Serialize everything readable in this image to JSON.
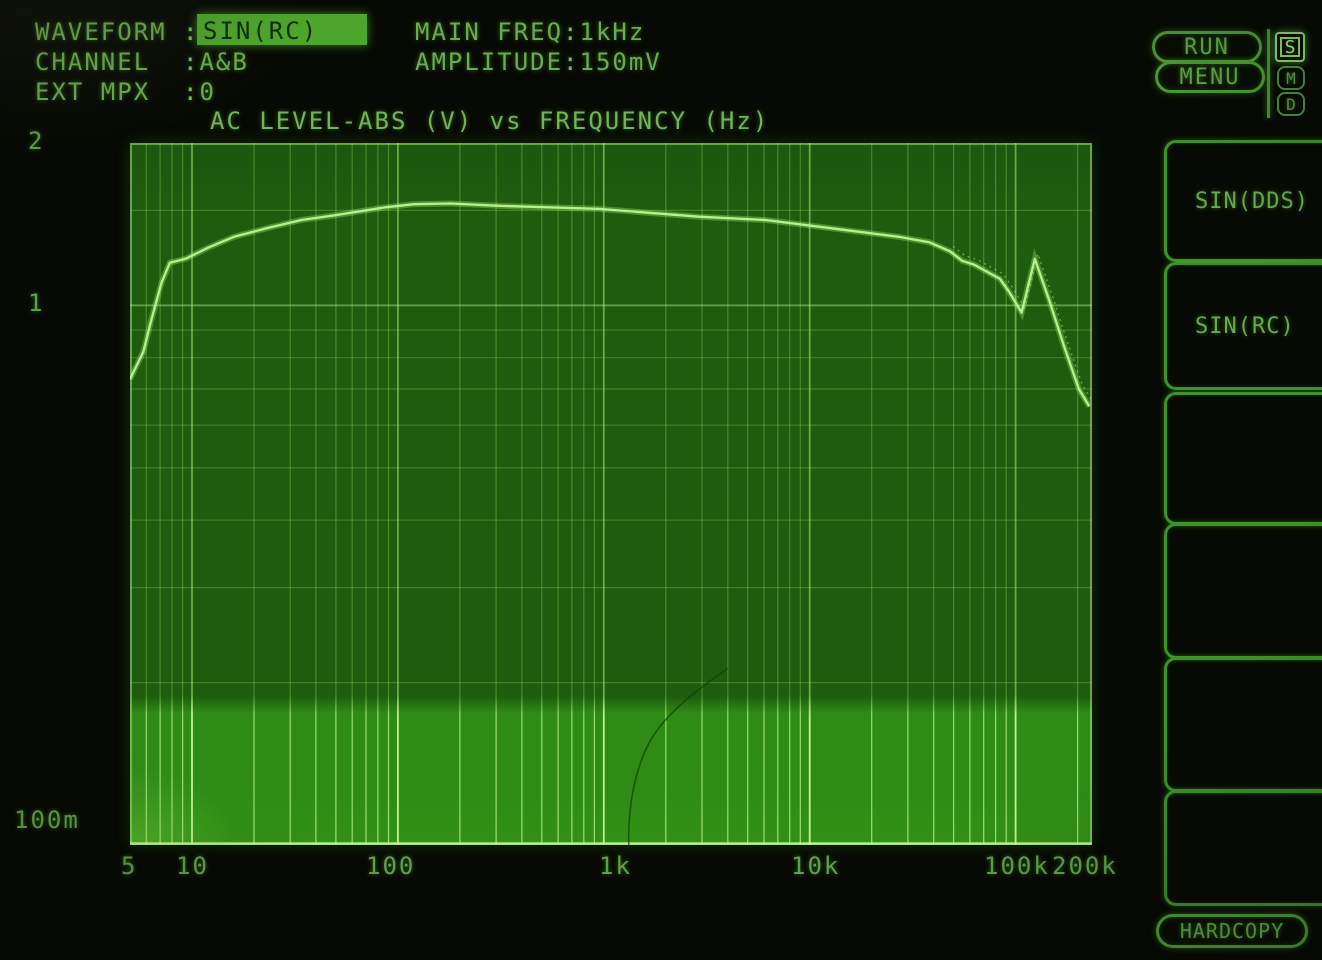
{
  "ui": {
    "colon": ":"
  },
  "status": {
    "rows": [
      {
        "label": "WAVEFORM",
        "value": "SIN(RC)",
        "highlighted": true
      },
      {
        "label": "CHANNEL",
        "value": "A&B"
      },
      {
        "label": "EXT MPX",
        "value": "0"
      }
    ],
    "params": [
      {
        "label": "MAIN FREQ",
        "value": "1kHz"
      },
      {
        "label": "AMPLITUDE",
        "value": "150mV"
      }
    ]
  },
  "side_panel": {
    "run_label": "RUN",
    "menu_label": "MENU",
    "indicators": [
      {
        "label": "S",
        "active": true
      },
      {
        "label": "M",
        "active": false
      },
      {
        "label": "D",
        "active": false
      }
    ],
    "softkeys": [
      {
        "label": "SIN(DDS)"
      },
      {
        "label": "SIN(RC)"
      },
      {
        "label": ""
      },
      {
        "label": ""
      },
      {
        "label": ""
      },
      {
        "label": ""
      }
    ],
    "hardcopy_label": "HARDCOPY"
  },
  "colors": {
    "phosphor_text": "#6cab4e",
    "highlight_bg": "#4da62b",
    "plot_bg_upper": "#1e5c0e",
    "plot_bg_lower": "#2f8b16",
    "grid_line": "#96e664",
    "trace": "#c0f494"
  },
  "chart_data": {
    "type": "line",
    "title": "AC LEVEL-ABS (V) vs FREQUENCY (Hz)",
    "x_axis": {
      "label": "FREQUENCY (Hz)",
      "scale": "log",
      "min": 5,
      "max": 235000,
      "tick_values": [
        5,
        10,
        100,
        1000,
        10000,
        100000,
        200000
      ],
      "tick_labels": [
        "5",
        "10",
        "100",
        "1k",
        "10k",
        "100k",
        "200k"
      ]
    },
    "y_axis": {
      "label": "AC LEVEL-ABS (V)",
      "scale": "log",
      "min": 0.1,
      "max": 2,
      "tick_values": [
        2,
        1,
        0.1
      ],
      "tick_labels": [
        "2",
        "1",
        "100m"
      ]
    },
    "grid": {
      "x_major": [
        10,
        100,
        1000,
        10000,
        100000
      ],
      "y_major": [
        1
      ],
      "y_minor": [
        0.2,
        0.3,
        0.4,
        0.5,
        0.6,
        0.7,
        0.8,
        0.9,
        1.5
      ]
    },
    "series": [
      {
        "name": "CH A&B level",
        "points": [
          [
            5,
            0.73
          ],
          [
            5.8,
            0.82
          ],
          [
            6.3,
            0.93
          ],
          [
            7.1,
            1.1
          ],
          [
            7.8,
            1.2
          ],
          [
            9.3,
            1.22
          ],
          [
            12,
            1.28
          ],
          [
            16,
            1.34
          ],
          [
            23,
            1.39
          ],
          [
            34,
            1.44
          ],
          [
            50,
            1.47
          ],
          [
            87,
            1.52
          ],
          [
            120,
            1.54
          ],
          [
            180,
            1.545
          ],
          [
            310,
            1.53
          ],
          [
            950,
            1.51
          ],
          [
            2900,
            1.46
          ],
          [
            6100,
            1.44
          ],
          [
            12800,
            1.39
          ],
          [
            27000,
            1.34
          ],
          [
            38000,
            1.31
          ],
          [
            48000,
            1.26
          ],
          [
            55000,
            1.21
          ],
          [
            63000,
            1.19
          ],
          [
            84000,
            1.12
          ],
          [
            93000,
            1.06
          ],
          [
            107000,
            0.97
          ],
          [
            124000,
            1.22
          ],
          [
            146000,
            1.02
          ],
          [
            172000,
            0.84
          ],
          [
            203000,
            0.7
          ],
          [
            228000,
            0.65
          ]
        ]
      }
    ]
  }
}
